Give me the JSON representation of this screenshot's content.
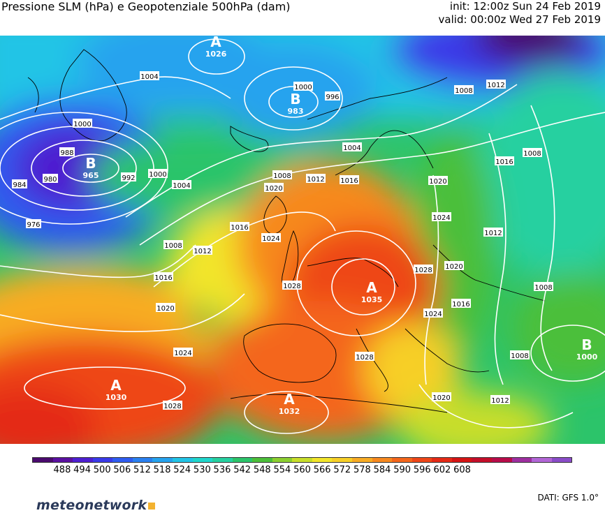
{
  "title": "Pressione SLM (hPa) e Geopotenziale 500hPa (dam)",
  "init": "init: 12:00z Sun 24 Feb 2019",
  "valid": "valid: 00:00z Wed 27 Feb 2019",
  "color_scale": {
    "labels": [
      "488",
      "494",
      "500",
      "506",
      "512",
      "518",
      "524",
      "530",
      "536",
      "542",
      "548",
      "554",
      "560",
      "566",
      "572",
      "578",
      "584",
      "590",
      "596",
      "602",
      "608"
    ],
    "colors": [
      "#4a0a6e",
      "#5a10a0",
      "#4d1fd0",
      "#3a3ae8",
      "#2f5cf0",
      "#2a80f0",
      "#26a3ee",
      "#22c4e6",
      "#20d6cc",
      "#26d0a0",
      "#2cc46a",
      "#4cbf3a",
      "#8ccf30",
      "#c8de2a",
      "#f2e52a",
      "#f7cf27",
      "#f8ac24",
      "#f7891f",
      "#f4661b",
      "#ee4618",
      "#e42a16",
      "#d41414",
      "#c40e2a",
      "#b80c4a",
      "#9e2fa0",
      "#b266d6",
      "#8a4cc8"
    ]
  },
  "pressure_centers": [
    {
      "type": "A",
      "value": "1026"
    },
    {
      "type": "B",
      "value": "983"
    },
    {
      "type": "B",
      "value": "965"
    },
    {
      "type": "A",
      "value": "1035"
    },
    {
      "type": "A",
      "value": "1030"
    },
    {
      "type": "A",
      "value": "1032"
    },
    {
      "type": "B",
      "value": "1000"
    }
  ],
  "isobar_labels": [
    "1000",
    "996",
    "1004",
    "1008",
    "1012",
    "1016",
    "1020",
    "1024",
    "1028",
    "988",
    "984",
    "980",
    "976",
    "992"
  ],
  "footer": {
    "brand": "meteonetwork",
    "data_source": "DATI: GFS 1.0°"
  }
}
